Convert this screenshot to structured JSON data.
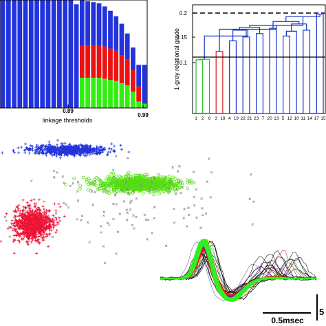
{
  "chart_data": [
    {
      "type": "bar",
      "xlabel": "linkage thresholds",
      "tick_labels": [
        "0.89",
        "0.99"
      ],
      "series": [
        {
          "color": "#2233dd"
        },
        {
          "color": "#ee1111"
        },
        {
          "color": "#33ee11"
        }
      ],
      "stacks": [
        {
          "green": 0.0,
          "red": 0.0,
          "blue": 1.0
        },
        {
          "green": 0.0,
          "red": 0.0,
          "blue": 1.0
        },
        {
          "green": 0.0,
          "red": 0.0,
          "blue": 1.0
        },
        {
          "green": 0.0,
          "red": 0.0,
          "blue": 1.0
        },
        {
          "green": 0.0,
          "red": 0.0,
          "blue": 1.0
        },
        {
          "green": 0.0,
          "red": 0.0,
          "blue": 1.0
        },
        {
          "green": 0.0,
          "red": 0.0,
          "blue": 1.0
        },
        {
          "green": 0.0,
          "red": 0.0,
          "blue": 1.0
        },
        {
          "green": 0.0,
          "red": 0.0,
          "blue": 1.0
        },
        {
          "green": 0.0,
          "red": 0.0,
          "blue": 1.0
        },
        {
          "green": 0.0,
          "red": 0.0,
          "blue": 1.0
        },
        {
          "green": 0.0,
          "red": 0.0,
          "blue": 1.0
        },
        {
          "green": 0.0,
          "red": 0.0,
          "blue": 1.0
        },
        {
          "green": 0.0,
          "red": 0.0,
          "blue": 0.96
        },
        {
          "green": 0.28,
          "red": 0.3,
          "blue": 0.42
        },
        {
          "green": 0.28,
          "red": 0.3,
          "blue": 0.41
        },
        {
          "green": 0.28,
          "red": 0.3,
          "blue": 0.4
        },
        {
          "green": 0.28,
          "red": 0.3,
          "blue": 0.39
        },
        {
          "green": 0.27,
          "red": 0.3,
          "blue": 0.37
        },
        {
          "green": 0.26,
          "red": 0.29,
          "blue": 0.35
        },
        {
          "green": 0.25,
          "red": 0.28,
          "blue": 0.32
        },
        {
          "green": 0.23,
          "red": 0.26,
          "blue": 0.29
        },
        {
          "green": 0.21,
          "red": 0.24,
          "blue": 0.24
        },
        {
          "green": 0.15,
          "red": 0.2,
          "blue": 0.21
        },
        {
          "green": 0.06,
          "red": 0.14,
          "blue": 0.2
        },
        {
          "green": 0.04,
          "red": 0.0,
          "blue": 0.36
        }
      ]
    },
    {
      "type": "dendrogram",
      "ylabel": "1-grey relational grade",
      "yticks": [
        "0.1",
        "0.15",
        "0.2"
      ],
      "ylim": [
        0.0,
        0.22
      ],
      "threshold_lines": [
        {
          "value": 0.2,
          "style": "dashed"
        },
        {
          "value": 0.11,
          "style": "solid"
        }
      ],
      "leaves": [
        "1",
        "2",
        "6",
        "3",
        "18",
        "4",
        "19",
        "22",
        "21",
        "23",
        "7",
        "20",
        "13",
        "5",
        "12",
        "10",
        "11",
        "14",
        "17",
        "15"
      ],
      "colors": {
        "green": "#22bb22",
        "red": "#dd1111",
        "blue": "#1133cc"
      }
    },
    {
      "type": "scatter",
      "clusters": [
        {
          "color": "#2233dd",
          "marker": "plus",
          "center": [
            0.27,
            0.12
          ],
          "spread": [
            0.15,
            0.03
          ],
          "count": 750
        },
        {
          "color": "#55dd11",
          "marker": "circle",
          "center": [
            0.54,
            0.33
          ],
          "spread": [
            0.15,
            0.045
          ],
          "count": 900
        },
        {
          "color": "#ee1133",
          "marker": "plus",
          "center": [
            0.13,
            0.58
          ],
          "spread": [
            0.075,
            0.1
          ],
          "count": 900
        },
        {
          "color": "#888888",
          "marker": "x",
          "center": [
            0.5,
            0.45
          ],
          "spread": [
            0.4,
            0.3
          ],
          "count": 120
        }
      ]
    },
    {
      "type": "line",
      "scalebar_x": "0.5msec",
      "scalebar_y": "5",
      "series": [
        {
          "name": "black",
          "color": "#111111"
        },
        {
          "name": "red",
          "color": "#ee1111"
        },
        {
          "name": "blue",
          "color": "#2233dd"
        },
        {
          "name": "green",
          "color": "#33ee22"
        }
      ]
    }
  ]
}
